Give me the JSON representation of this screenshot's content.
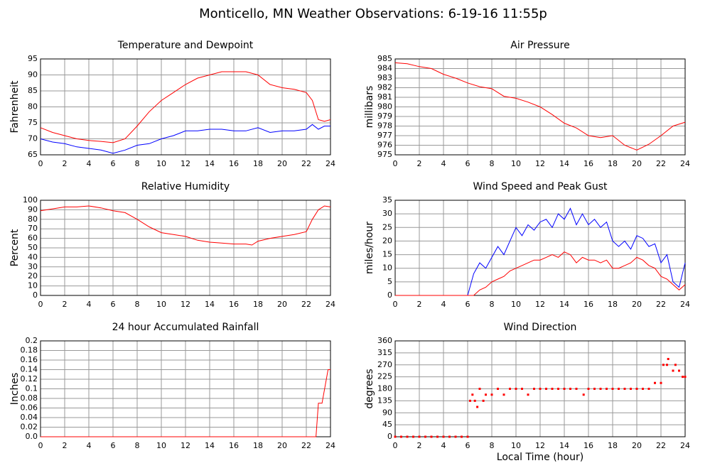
{
  "title": "Monticello, MN Weather Observations: 6-19-16 11:55p",
  "chart_data": [
    {
      "type": "line",
      "title": "Temperature and Dewpoint",
      "y_label": "Fahrenheit",
      "x": [
        0,
        1,
        2,
        3,
        4,
        5,
        6,
        7,
        8,
        9,
        10,
        11,
        12,
        13,
        14,
        15,
        16,
        17,
        18,
        19,
        20,
        21,
        22,
        22.5,
        23,
        23.5,
        24
      ],
      "series": [
        {
          "color": "#ff0000",
          "values": [
            73.5,
            72,
            71,
            70,
            69.5,
            69.2,
            68.8,
            70,
            74,
            78.5,
            82,
            84.5,
            87,
            89,
            90,
            91,
            91,
            91,
            90,
            87,
            86,
            85.5,
            84.5,
            82,
            76,
            75.5,
            76
          ]
        },
        {
          "color": "#0000ff",
          "values": [
            70,
            69,
            68.5,
            67.5,
            67,
            66.5,
            65.5,
            66.5,
            68,
            68.5,
            70,
            71,
            72.5,
            72.5,
            73,
            73,
            72.5,
            72.5,
            73.5,
            72,
            72.5,
            72.5,
            73,
            74.5,
            73,
            74,
            74
          ]
        }
      ],
      "xlim": [
        0,
        24
      ],
      "xticks": [
        0,
        2,
        4,
        6,
        8,
        10,
        12,
        14,
        16,
        18,
        20,
        22,
        24
      ],
      "ylim": [
        65,
        95
      ],
      "yticks": [
        65,
        70,
        75,
        80,
        85,
        90,
        95
      ],
      "grid": true
    },
    {
      "type": "line",
      "title": "Air Pressure",
      "y_label": "millibars",
      "x": [
        0,
        1,
        2,
        3,
        4,
        5,
        6,
        7,
        8,
        9,
        10,
        11,
        12,
        13,
        14,
        15,
        16,
        17,
        18,
        19,
        20,
        21,
        22,
        23,
        24
      ],
      "series": [
        {
          "color": "#ff0000",
          "values": [
            984.6,
            984.5,
            984.2,
            984,
            983.4,
            983,
            982.5,
            982.1,
            981.9,
            981.1,
            980.9,
            980.5,
            980,
            979.2,
            978.3,
            977.8,
            977,
            976.8,
            977,
            976,
            975.5,
            976.1,
            977,
            978,
            978.4
          ]
        }
      ],
      "xlim": [
        0,
        24
      ],
      "xticks": [
        0,
        2,
        4,
        6,
        8,
        10,
        12,
        14,
        16,
        18,
        20,
        22,
        24
      ],
      "ylim": [
        975,
        985
      ],
      "yticks": [
        975,
        976,
        977,
        978,
        979,
        980,
        981,
        982,
        983,
        984,
        985
      ],
      "grid": true
    },
    {
      "type": "line",
      "title": "Relative Humidity",
      "y_label": "Percent",
      "x": [
        0,
        1,
        2,
        3,
        4,
        5,
        6,
        7,
        8,
        9,
        10,
        11,
        12,
        13,
        14,
        15,
        16,
        17,
        17.5,
        18,
        19,
        20,
        21,
        22,
        22.5,
        23,
        23.5,
        24
      ],
      "series": [
        {
          "color": "#ff0000",
          "values": [
            89,
            91,
            93,
            93,
            94,
            92,
            89,
            87,
            80,
            72,
            66,
            64,
            62,
            58,
            56,
            55,
            54,
            54,
            53,
            57,
            60,
            62,
            64,
            67,
            80,
            90,
            94,
            93
          ]
        }
      ],
      "xlim": [
        0,
        24
      ],
      "xticks": [
        0,
        2,
        4,
        6,
        8,
        10,
        12,
        14,
        16,
        18,
        20,
        22,
        24
      ],
      "ylim": [
        0,
        100
      ],
      "yticks": [
        0,
        10,
        20,
        30,
        40,
        50,
        60,
        70,
        80,
        90,
        100
      ],
      "grid": true
    },
    {
      "type": "line",
      "title": "Wind Speed and Peak Gust",
      "y_label": "miles/hour",
      "x": [
        0,
        1,
        2,
        3,
        4,
        5,
        6,
        6.5,
        7,
        7.5,
        8,
        8.5,
        9,
        9.5,
        10,
        10.5,
        11,
        11.5,
        12,
        12.5,
        13,
        13.5,
        14,
        14.5,
        15,
        15.5,
        16,
        16.5,
        17,
        17.5,
        18,
        18.5,
        19,
        19.5,
        20,
        20.5,
        21,
        21.5,
        22,
        22.5,
        23,
        23.5,
        24
      ],
      "series": [
        {
          "color": "#0000ff",
          "values": [
            0,
            0,
            0,
            0,
            0,
            0,
            0,
            8,
            12,
            10,
            14,
            18,
            15,
            20,
            25,
            22,
            26,
            24,
            27,
            28,
            25,
            30,
            28,
            32,
            26,
            30,
            26,
            28,
            25,
            27,
            20,
            18,
            20,
            17,
            22,
            21,
            18,
            19,
            12,
            15,
            5,
            3,
            12
          ]
        },
        {
          "color": "#ff0000",
          "values": [
            0,
            0,
            0,
            0,
            0,
            0,
            0,
            0,
            2,
            3,
            5,
            6,
            7,
            9,
            10,
            11,
            12,
            13,
            13,
            14,
            15,
            14,
            16,
            15,
            12,
            14,
            13,
            13,
            12,
            13,
            10,
            10,
            11,
            12,
            14,
            13,
            11,
            10,
            7,
            6,
            4,
            2,
            4
          ]
        }
      ],
      "xlim": [
        0,
        24
      ],
      "xticks": [
        0,
        2,
        4,
        6,
        8,
        10,
        12,
        14,
        16,
        18,
        20,
        22,
        24
      ],
      "ylim": [
        0,
        35
      ],
      "yticks": [
        0,
        5,
        10,
        15,
        20,
        25,
        30,
        35
      ],
      "grid": true
    },
    {
      "type": "line",
      "title": "24 hour Accumulated Rainfall",
      "y_label": "Inches",
      "x": [
        0,
        22.8,
        23,
        23.3,
        23.8,
        24
      ],
      "series": [
        {
          "color": "#ff0000",
          "values": [
            0,
            0,
            0.07,
            0.07,
            0.14,
            0.14
          ]
        }
      ],
      "xlim": [
        0,
        24
      ],
      "xticks": [
        0,
        2,
        4,
        6,
        8,
        10,
        12,
        14,
        16,
        18,
        20,
        22,
        24
      ],
      "ylim": [
        0,
        0.2
      ],
      "yticks": [
        {
          "value": 0,
          "label": "0.0"
        },
        0.02,
        0.04,
        0.06,
        0.08,
        0.1,
        0.12,
        0.14,
        0.16,
        0.18,
        0.2
      ],
      "grid": true
    },
    {
      "type": "scatter",
      "title": "Wind Direction",
      "y_label": "degrees",
      "x_label": "Local Time (hour)",
      "x": [
        0,
        0.5,
        1,
        1.5,
        2,
        2.5,
        3,
        3.5,
        4,
        4.5,
        5,
        5.5,
        6,
        6.2,
        6.4,
        6.6,
        6.8,
        7,
        7.3,
        7.5,
        8,
        8.5,
        9,
        9.5,
        10,
        10.5,
        11,
        11.5,
        12,
        12.5,
        13,
        13.5,
        14,
        14.5,
        15,
        15.6,
        16,
        16.5,
        17,
        17.5,
        18,
        18.5,
        19,
        19.5,
        20,
        20.5,
        21,
        21.5,
        22,
        22.2,
        22.5,
        22.6,
        23,
        23.2,
        23.5,
        23.8,
        24
      ],
      "series": [
        {
          "color": "#ff0000",
          "values": [
            0,
            0,
            0,
            0,
            0,
            0,
            0,
            0,
            0,
            0,
            0,
            0,
            0,
            135,
            158,
            135,
            112,
            180,
            135,
            158,
            158,
            180,
            158,
            180,
            180,
            180,
            158,
            180,
            180,
            180,
            180,
            180,
            180,
            180,
            180,
            158,
            180,
            180,
            180,
            180,
            180,
            180,
            180,
            180,
            180,
            180,
            180,
            202,
            202,
            270,
            270,
            292,
            248,
            270,
            248,
            225,
            225
          ]
        }
      ],
      "xlim": [
        0,
        24
      ],
      "xticks": [
        0,
        2,
        4,
        6,
        8,
        10,
        12,
        14,
        16,
        18,
        20,
        22,
        24
      ],
      "ylim": [
        0,
        360
      ],
      "yticks": [
        0,
        45,
        90,
        135,
        180,
        225,
        270,
        315,
        360
      ],
      "grid": true
    }
  ]
}
